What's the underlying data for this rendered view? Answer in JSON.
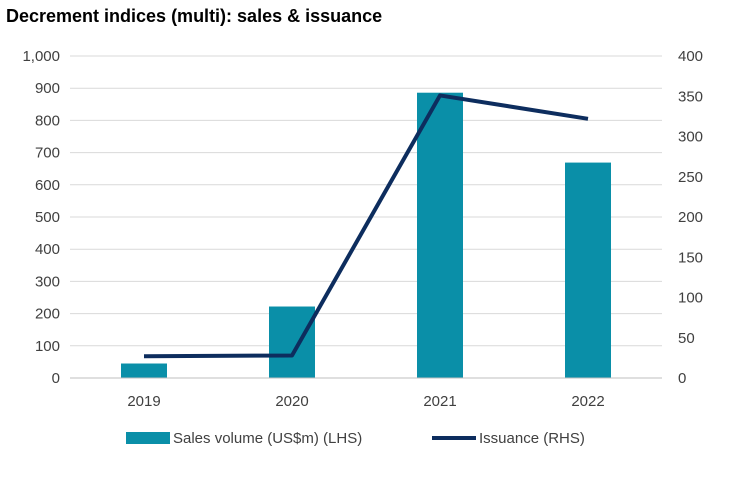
{
  "title": "Decrement indices (multi): sales & issuance",
  "chart_data": {
    "type": "bar+line",
    "categories": [
      "2019",
      "2020",
      "2021",
      "2022"
    ],
    "series": [
      {
        "name": "Sales volume (US$m) (LHS)",
        "type": "bar",
        "axis": "left",
        "color": "#0a8fa8",
        "values": [
          45,
          222,
          886,
          669
        ]
      },
      {
        "name": "Issuance (RHS)",
        "type": "line",
        "axis": "right",
        "color": "#0d2d5e",
        "values": [
          27,
          28,
          351,
          322
        ]
      }
    ],
    "y_left": {
      "min": 0,
      "max": 1000,
      "step": 100,
      "ticks": [
        "0",
        "100",
        "200",
        "300",
        "400",
        "500",
        "600",
        "700",
        "800",
        "900",
        "1,000"
      ]
    },
    "y_right": {
      "min": 0,
      "max": 400,
      "step": 50,
      "ticks": [
        "0",
        "50",
        "100",
        "150",
        "200",
        "250",
        "300",
        "350",
        "400"
      ]
    },
    "grid": true,
    "legend_position": "bottom"
  }
}
